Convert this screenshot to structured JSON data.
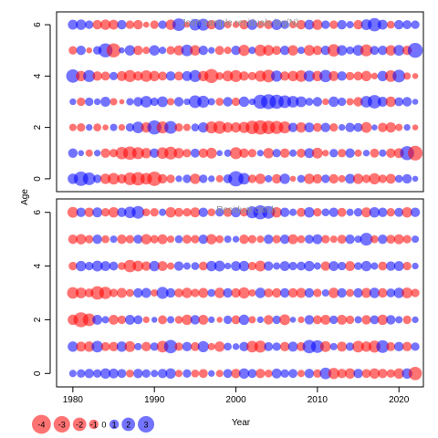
{
  "colors": {
    "negative": "#ff0000",
    "positive": "#0000ff",
    "bubble_opacity": 0.55,
    "panel_title": "#8c8c8c",
    "frame": "#000000"
  },
  "chart_data": [
    {
      "type": "scatter",
      "subtype": "bubble",
      "title": "Joint sample residuals log(N)",
      "xlabel": "Year",
      "ylabel": "Age",
      "xlim": [
        1978,
        2023
      ],
      "ylim": [
        -0.5,
        6.5
      ],
      "x_ticks": [
        "1980",
        "1990",
        "2000",
        "2010",
        "2020"
      ],
      "y_ticks": [
        "0",
        "2",
        "4",
        "6"
      ],
      "ages": [
        0,
        1,
        2,
        3,
        4,
        5,
        6
      ],
      "years": [
        1980,
        1981,
        1982,
        1983,
        1984,
        1985,
        1986,
        1987,
        1988,
        1989,
        1990,
        1991,
        1992,
        1993,
        1994,
        1995,
        1996,
        1997,
        1998,
        1999,
        2000,
        2001,
        2002,
        2003,
        2004,
        2005,
        2006,
        2007,
        2008,
        2009,
        2010,
        2011,
        2012,
        2013,
        2014,
        2015,
        2016,
        2017,
        2018,
        2019,
        2020,
        2021,
        2022
      ],
      "residuals": [
        [
          1.2,
          2.3,
          1.8,
          0.8,
          -1.2,
          -1.5,
          -1.0,
          -1.8,
          -2.0,
          -1.5,
          -2.3,
          -1.0,
          -0.8,
          0.5,
          0.8,
          -1.2,
          0.8,
          0.5,
          -0.6,
          0.9,
          2.6,
          1.5,
          -0.8,
          -1.2,
          0.6,
          -1.0,
          1.2,
          -0.4,
          0.7,
          -1.2,
          -1.0,
          0.8,
          -1.0,
          -0.6,
          1.1,
          -1.2,
          -0.8,
          -1.4,
          -0.8,
          -1.1,
          0.7,
          1.0,
          0.4
        ],
        [
          1.0,
          0.4,
          -0.6,
          0.5,
          -1.0,
          -0.8,
          -1.7,
          -2.0,
          -1.6,
          -1.2,
          1.0,
          -1.5,
          -1.8,
          -1.2,
          -0.8,
          0.9,
          -1.0,
          -1.3,
          0.4,
          0.6,
          -1.6,
          -1.0,
          -0.8,
          0.5,
          -1.2,
          0.8,
          -1.0,
          0.6,
          -0.9,
          1.1,
          -1.3,
          -0.5,
          0.8,
          -0.8,
          1.0,
          -0.6,
          0.5,
          -0.9,
          0.6,
          -1.0,
          -1.1,
          2.2,
          -2.4
        ],
        [
          -0.6,
          -0.8,
          0.5,
          -0.7,
          -0.4,
          0.6,
          -0.5,
          0.8,
          1.5,
          -1.2,
          2.2,
          -1.6,
          1.8,
          -0.8,
          -0.6,
          0.7,
          1.2,
          -1.6,
          -1.8,
          -1.2,
          -1.2,
          -1.4,
          -2.0,
          -2.3,
          -2.0,
          -1.9,
          -1.6,
          1.0,
          -1.2,
          1.1,
          -0.9,
          1.0,
          -0.8,
          0.5,
          1.0,
          0.9,
          -1.3,
          0.4,
          -1.0,
          -1.2,
          -0.6,
          0.5,
          -0.4
        ],
        [
          0.5,
          -0.8,
          0.8,
          0.5,
          1.1,
          -0.6,
          -0.3,
          0.6,
          1.0,
          1.5,
          0.8,
          1.3,
          -0.6,
          1.0,
          0.5,
          1.8,
          1.6,
          0.6,
          -0.7,
          1.0,
          -0.8,
          1.2,
          0.5,
          2.2,
          2.5,
          2.2,
          1.8,
          1.5,
          1.3,
          0.7,
          1.0,
          -0.5,
          1.2,
          0.8,
          -0.6,
          -1.0,
          1.5,
          2.0,
          1.1,
          -1.2,
          0.9,
          1.0,
          0.4
        ],
        [
          2.0,
          -1.2,
          1.6,
          -1.0,
          -0.9,
          0.8,
          -1.1,
          -1.6,
          -1.0,
          -1.5,
          -1.2,
          -0.9,
          1.0,
          -0.9,
          1.1,
          1.6,
          -1.2,
          -2.2,
          -0.7,
          -1.3,
          -1.6,
          -1.0,
          -0.8,
          -1.4,
          -1.8,
          1.4,
          -1.0,
          -1.2,
          -1.5,
          1.4,
          -1.2,
          1.7,
          -1.1,
          1.0,
          -0.8,
          -0.9,
          -1.2,
          -0.5,
          1.2,
          -1.5,
          1.8,
          -0.6,
          -0.4
        ],
        [
          -0.8,
          1.0,
          -0.4,
          0.8,
          2.2,
          -2.2,
          0.4,
          1.2,
          -1.0,
          -0.6,
          1.2,
          0.6,
          -0.8,
          -1.1,
          1.5,
          -1.2,
          1.0,
          0.5,
          -0.9,
          -0.6,
          1.0,
          -1.4,
          0.6,
          -1.5,
          -1.3,
          -0.9,
          1.0,
          -1.2,
          0.6,
          -1.3,
          -1.0,
          1.0,
          -1.7,
          1.2,
          0.7,
          1.3,
          -1.6,
          0.9,
          1.0,
          -1.2,
          1.3,
          -1.0,
          2.5
        ],
        [
          1.1,
          1.2,
          0.8,
          -1.0,
          -1.2,
          -1.1,
          1.0,
          -0.8,
          -1.0,
          -0.4,
          -0.8,
          0.8,
          -1.2,
          1.8,
          -0.4,
          1.5,
          1.6,
          -1.0,
          1.2,
          -0.6,
          -0.5,
          -1.0,
          1.2,
          -0.6,
          -0.9,
          1.3,
          0.8,
          -0.6,
          -1.0,
          1.1,
          -1.2,
          0.8,
          -0.8,
          1.0,
          0.6,
          -1.0,
          1.3,
          2.0,
          1.1,
          -0.7,
          1.0,
          0.9,
          0.8
        ]
      ]
    },
    {
      "type": "scatter",
      "subtype": "bubble",
      "title": "Residual catch",
      "xlabel": "Year",
      "ylabel": "Age",
      "xlim": [
        1978,
        2023
      ],
      "ylim": [
        -0.5,
        6.5
      ],
      "x_ticks": [
        "1980",
        "1990",
        "2000",
        "2010",
        "2020"
      ],
      "y_ticks": [
        "0",
        "2",
        "4",
        "6"
      ],
      "ages": [
        0,
        1,
        2,
        3,
        4,
        5,
        6
      ],
      "years": [
        1980,
        1981,
        1982,
        1983,
        1984,
        1985,
        1986,
        1987,
        1988,
        1989,
        1990,
        1991,
        1992,
        1993,
        1994,
        1995,
        1996,
        1997,
        1998,
        1999,
        2000,
        2001,
        2002,
        2003,
        2004,
        2005,
        2006,
        2007,
        2008,
        2009,
        2010,
        2011,
        2012,
        2013,
        2014,
        2015,
        2016,
        2017,
        2018,
        2019,
        2020,
        2021,
        2022
      ],
      "residuals": [
        [
          0.6,
          0.8,
          1.0,
          0.8,
          1.2,
          1.1,
          0.9,
          -0.7,
          1.0,
          0.8,
          0.6,
          1.0,
          1.2,
          -0.6,
          0.8,
          -0.7,
          -0.9,
          0.5,
          -0.6,
          0.9,
          -1.0,
          1.2,
          0.9,
          -1.0,
          -0.7,
          1.1,
          0.8,
          0.9,
          -0.6,
          1.0,
          -0.8,
          1.5,
          -1.4,
          -1.0,
          -1.2,
          1.0,
          -0.9,
          -1.2,
          -1.0,
          -0.8,
          -1.2,
          1.2,
          -2.0
        ],
        [
          1.2,
          -1.1,
          -1.2,
          1.5,
          -0.9,
          -1.0,
          1.2,
          -1.3,
          0.6,
          -1.0,
          0.8,
          -1.5,
          2.0,
          -0.8,
          1.0,
          -0.9,
          1.4,
          -0.6,
          -1.2,
          0.7,
          0.5,
          1.0,
          -1.5,
          -1.6,
          0.9,
          0.8,
          -1.0,
          1.1,
          -0.9,
          2.0,
          1.8,
          -1.3,
          0.6,
          -1.1,
          0.8,
          -1.5,
          -1.2,
          -1.6,
          1.8,
          -0.9,
          1.0,
          -1.0,
          0.8
        ],
        [
          -1.2,
          -2.5,
          -1.8,
          1.1,
          0.6,
          -1.1,
          -0.8,
          1.1,
          0.9,
          -0.5,
          0.4,
          -0.9,
          0.6,
          -0.7,
          -1.2,
          1.0,
          -1.1,
          0.5,
          -0.4,
          0.8,
          -0.9,
          1.2,
          -0.6,
          0.5,
          -1.0,
          0.8,
          -1.3,
          0.4,
          -0.5,
          1.0,
          -0.9,
          -1.1,
          0.8,
          -1.1,
          -0.8,
          0.6,
          -1.0,
          0.9,
          -1.2,
          1.0,
          0.6,
          -0.8,
          0.5
        ],
        [
          -1.5,
          -1.3,
          -0.9,
          -2.0,
          -1.7,
          -0.8,
          -1.1,
          -0.7,
          1.0,
          1.1,
          -0.6,
          1.6,
          1.0,
          -0.9,
          -1.2,
          -0.8,
          -1.1,
          0.7,
          -1.2,
          1.0,
          -1.0,
          -1.4,
          -0.6,
          1.2,
          -0.9,
          -1.0,
          1.0,
          -1.0,
          -1.1,
          1.0,
          -0.8,
          0.6,
          -1.2,
          1.0,
          -0.7,
          1.0,
          -1.1,
          1.2,
          -1.0,
          0.9,
          1.2,
          -1.3,
          -0.8
        ],
        [
          -0.8,
          1.2,
          0.8,
          1.3,
          1.1,
          0.9,
          -0.7,
          -1.7,
          -1.3,
          -1.0,
          1.2,
          -1.1,
          -0.6,
          1.0,
          0.6,
          0.7,
          -0.9,
          1.2,
          1.3,
          0.5,
          1.1,
          1.2,
          -0.8,
          -1.3,
          1.0,
          0.6,
          1.1,
          0.8,
          0.9,
          1.2,
          0.6,
          -1.0,
          1.1,
          0.8,
          -1.1,
          0.7,
          1.2,
          0.6,
          -0.9,
          1.0,
          1.1,
          -0.8,
          0.5
        ],
        [
          -1.0,
          -1.2,
          -0.8,
          1.0,
          -0.7,
          0.6,
          -1.0,
          -0.8,
          0.9,
          -1.2,
          -0.8,
          -1.1,
          -0.6,
          0.7,
          -0.9,
          -0.8,
          1.0,
          -1.2,
          -0.7,
          0.6,
          0.5,
          -1.0,
          -0.8,
          -0.6,
          1.0,
          -0.8,
          1.0,
          -1.1,
          -0.7,
          0.9,
          1.1,
          -0.8,
          -0.6,
          -0.9,
          1.0,
          0.6,
          1.8,
          -0.7,
          1.0,
          -0.9,
          -1.1,
          -0.8,
          0.6
        ],
        [
          -1.3,
          1.0,
          -1.0,
          1.1,
          -0.8,
          -1.2,
          1.0,
          1.5,
          1.8,
          -0.7,
          -0.8,
          0.6,
          -1.2,
          -0.9,
          -0.8,
          -1.1,
          1.0,
          -0.7,
          0.8,
          -0.9,
          1.1,
          -0.8,
          1.6,
          2.2,
          1.8,
          -1.2,
          1.0,
          0.6,
          -0.9,
          1.2,
          -0.8,
          0.7,
          1.0,
          -0.9,
          0.6,
          0.8,
          -1.1,
          1.2,
          1.0,
          -0.8,
          0.9,
          -1.2,
          1.0
        ]
      ]
    }
  ],
  "legend": {
    "items": [
      {
        "label": "-4",
        "value": -4
      },
      {
        "label": "-3",
        "value": -3
      },
      {
        "label": "-2",
        "value": -2
      },
      {
        "label": "-1",
        "value": -1
      },
      {
        "label": "0",
        "value": 0
      },
      {
        "label": "1",
        "value": 1
      },
      {
        "label": "2",
        "value": 2
      },
      {
        "label": "3",
        "value": 3
      }
    ]
  },
  "shared_axes": {
    "xlabel": "Year",
    "ylabel": "Age"
  }
}
